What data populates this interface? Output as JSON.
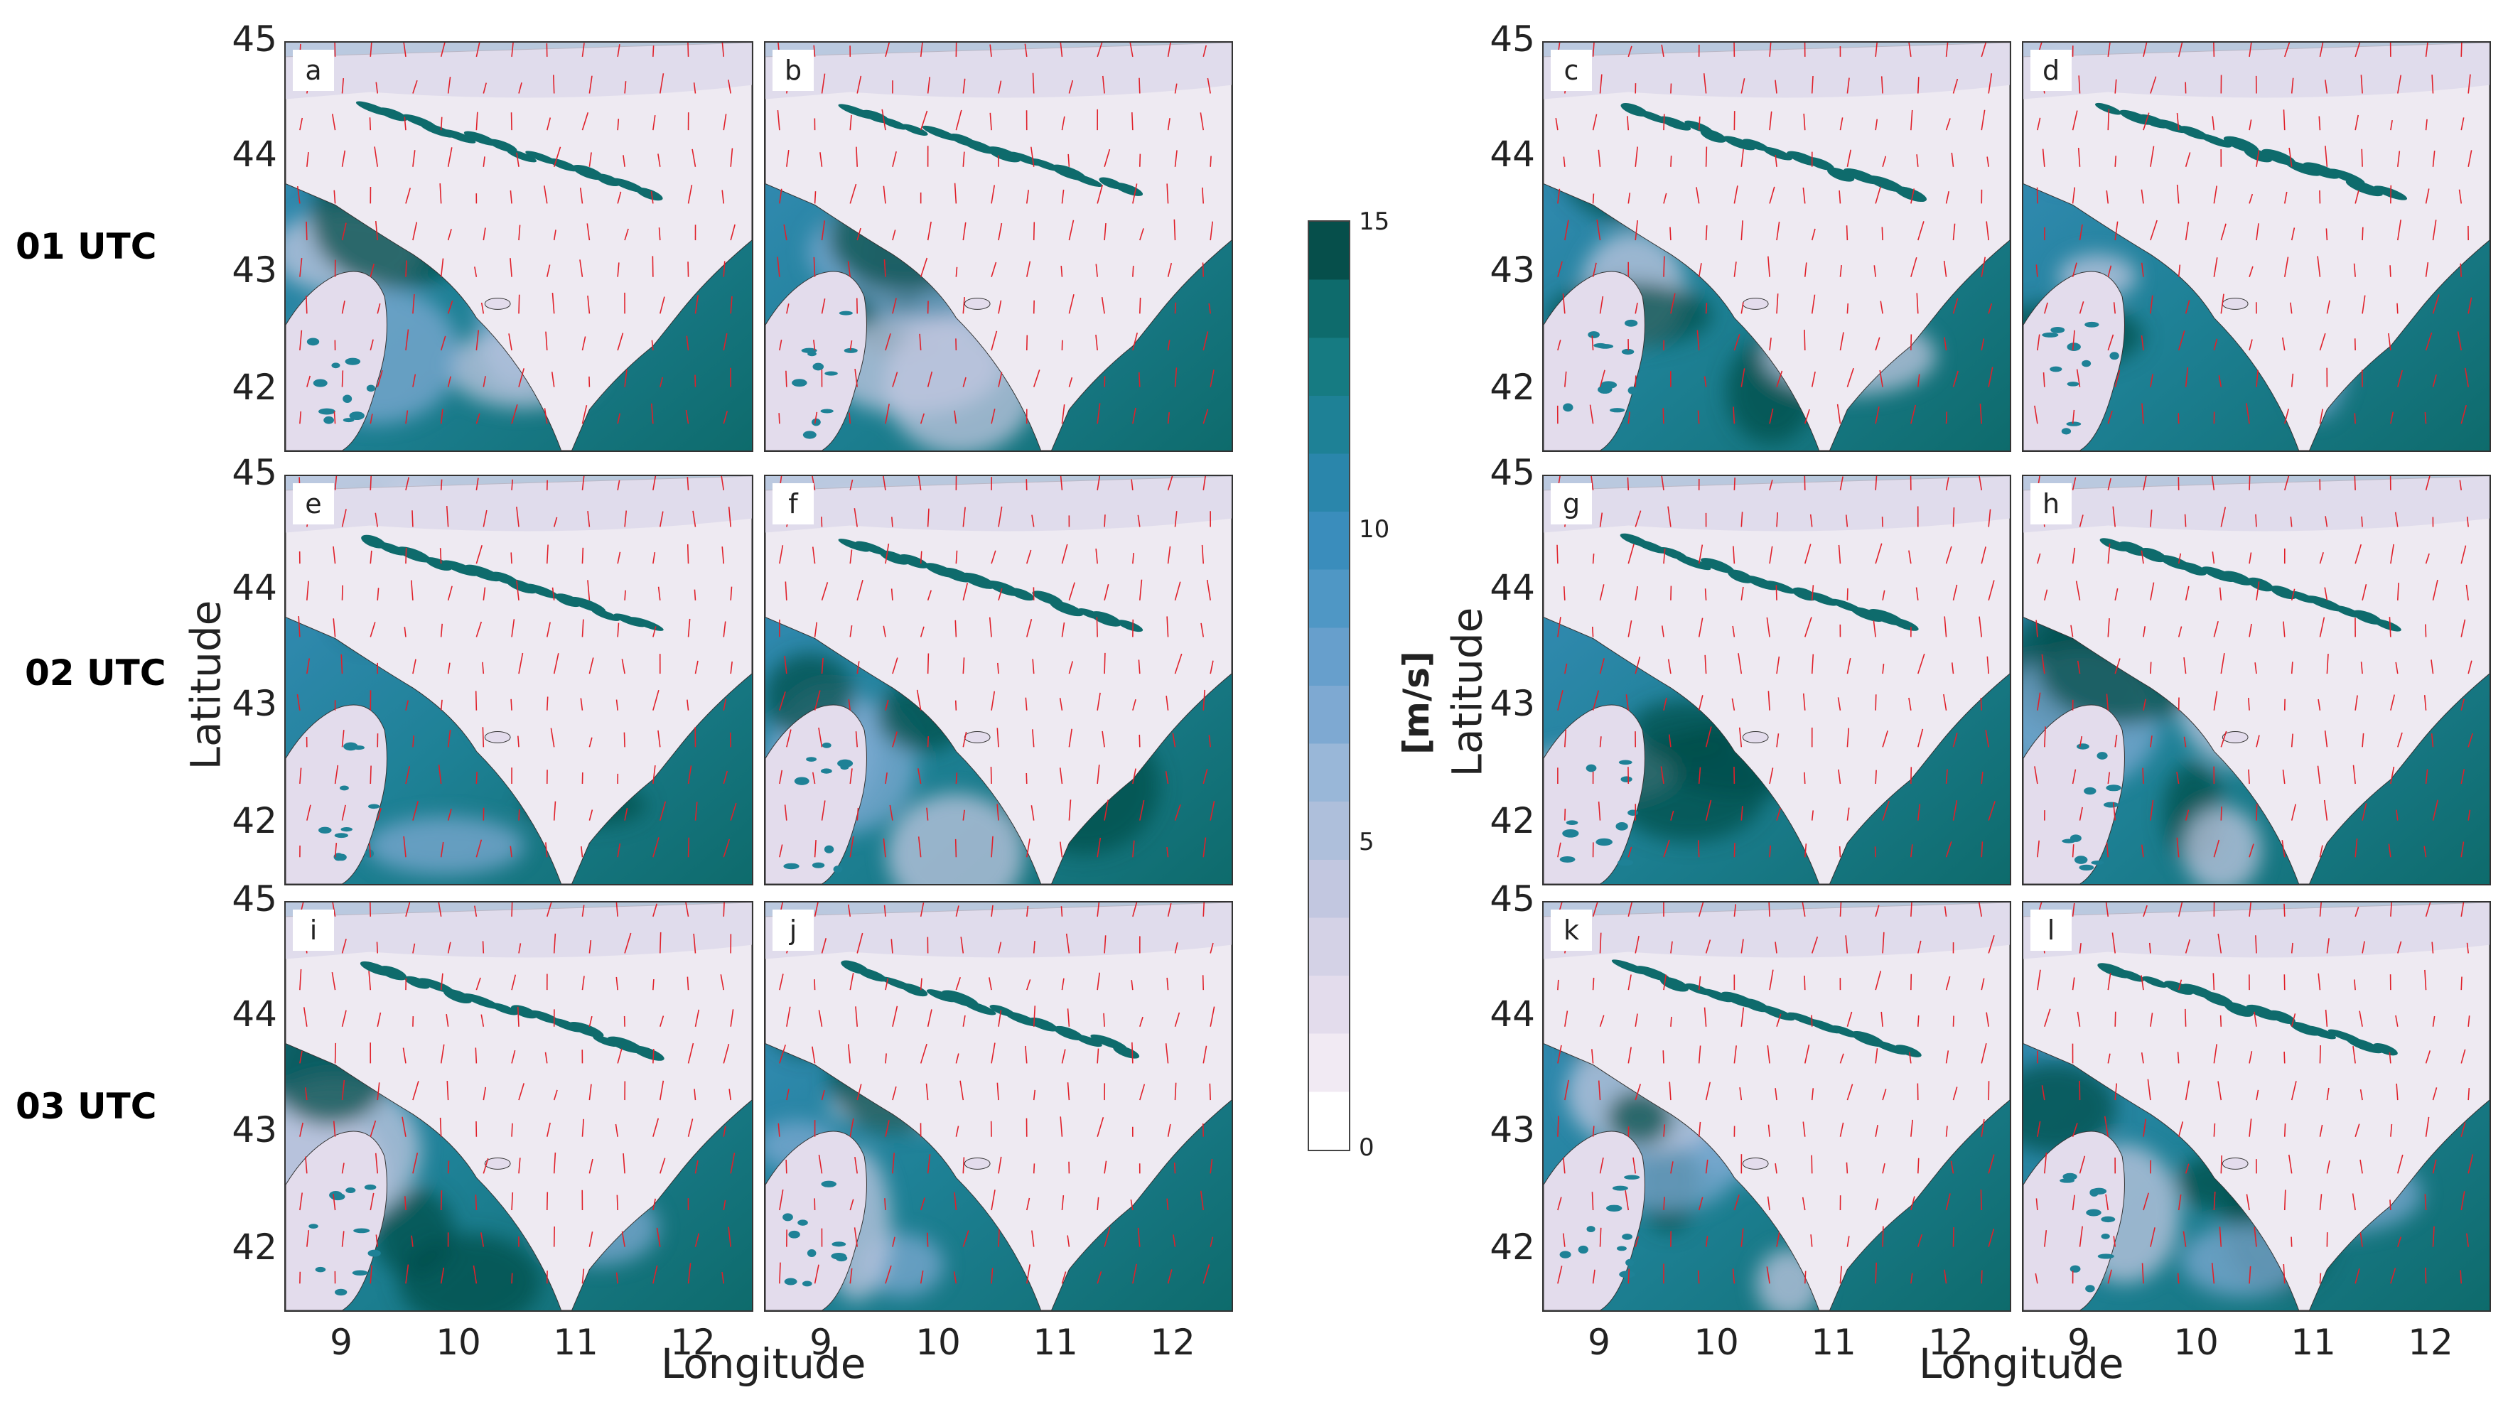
{
  "figure": {
    "row_labels": [
      "01 UTC",
      "02 UTC",
      "03 UTC"
    ],
    "panel_labels": [
      "a",
      "b",
      "c",
      "d",
      "e",
      "f",
      "g",
      "h",
      "i",
      "j",
      "k",
      "l"
    ],
    "y_ticks": [
      "45",
      "44",
      "43",
      "42"
    ],
    "x_ticks": [
      "9",
      "10",
      "11",
      "12"
    ],
    "x_axis_title": "Longitude",
    "y_axis_title": "Latitude",
    "colorbar": {
      "ticks": [
        "15",
        "10",
        "5",
        "0"
      ],
      "title": "[m/s]",
      "colors": [
        "#ffffff",
        "#f1eaf3",
        "#e3dcec",
        "#d4d2e6",
        "#c2c7e0",
        "#aebfdb",
        "#99b7d8",
        "#7ea9d2",
        "#679fcc",
        "#4f97c5",
        "#3a8dbc",
        "#2a86ab",
        "#1e8196",
        "#167b82",
        "#0e6b6c",
        "#064f4b"
      ]
    }
  }
}
